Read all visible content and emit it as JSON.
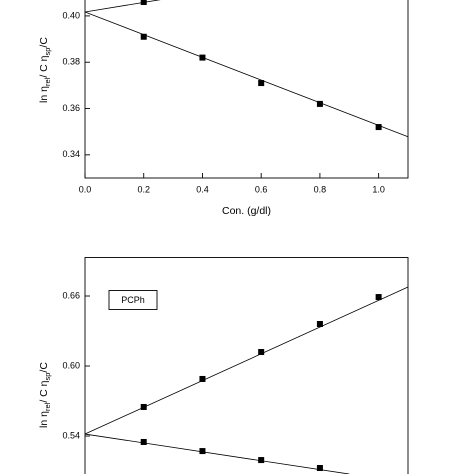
{
  "chart_data": [
    {
      "type": "scatter",
      "x_label": "Con. (g/dl)",
      "y_label": [
        "ln η",
        "rel",
        "/ C   η",
        "sp",
        "/C"
      ],
      "xlim": [
        0,
        1.1
      ],
      "ylim": [
        0.33,
        0.41
      ],
      "xticks": [
        {
          "value": 0,
          "label": "0.0"
        },
        0.2,
        0.4,
        0.6,
        0.8,
        {
          "value": 1,
          "label": "1.0"
        }
      ],
      "yticks": [
        0.34,
        0.36,
        0.38,
        {
          "value": 0.4,
          "label": "0.40"
        }
      ],
      "series": [
        {
          "color": "#000000",
          "x": [
            0.2,
            0.4,
            0.6,
            0.8,
            1.0
          ],
          "values": [
            0.391,
            0.382,
            0.371,
            0.362,
            0.352
          ]
        },
        {
          "color": "#000000",
          "x": [
            0.2
          ],
          "values": [
            0.406
          ]
        }
      ],
      "fit_lines": [
        {
          "x": [
            0,
            1.1
          ],
          "values": [
            0.4017,
            0.3478
          ]
        },
        {
          "x": [
            0,
            0.256
          ],
          "values": [
            0.4017,
            0.407
          ]
        }
      ]
    },
    {
      "type": "scatter",
      "annotation": "PCPh",
      "y_label": [
        "ln η",
        "rel",
        "/ C   η",
        "sp",
        "/C"
      ],
      "xlim": [
        0,
        1.1
      ],
      "ylim": [
        0.5,
        0.693
      ],
      "yticks": [
        0.54,
        {
          "value": 0.6,
          "label": "0.60"
        },
        0.66
      ],
      "series": [
        {
          "color": "#000000",
          "x": [
            0.2,
            0.4,
            0.6,
            0.8,
            1.0
          ],
          "values": [
            0.5649,
            0.5889,
            0.612,
            0.636,
            0.6591
          ]
        },
        {
          "color": "#000000",
          "x": [
            0.2,
            0.4,
            0.6,
            0.8
          ],
          "values": [
            0.5349,
            0.5271,
            0.5194,
            0.5126
          ]
        }
      ],
      "fit_lines": [
        {
          "x": [
            0,
            1.1
          ],
          "values": [
            0.5417,
            0.6677
          ]
        },
        {
          "x": [
            0,
            0.9
          ],
          "values": [
            0.5417,
            0.5074
          ]
        }
      ]
    }
  ]
}
